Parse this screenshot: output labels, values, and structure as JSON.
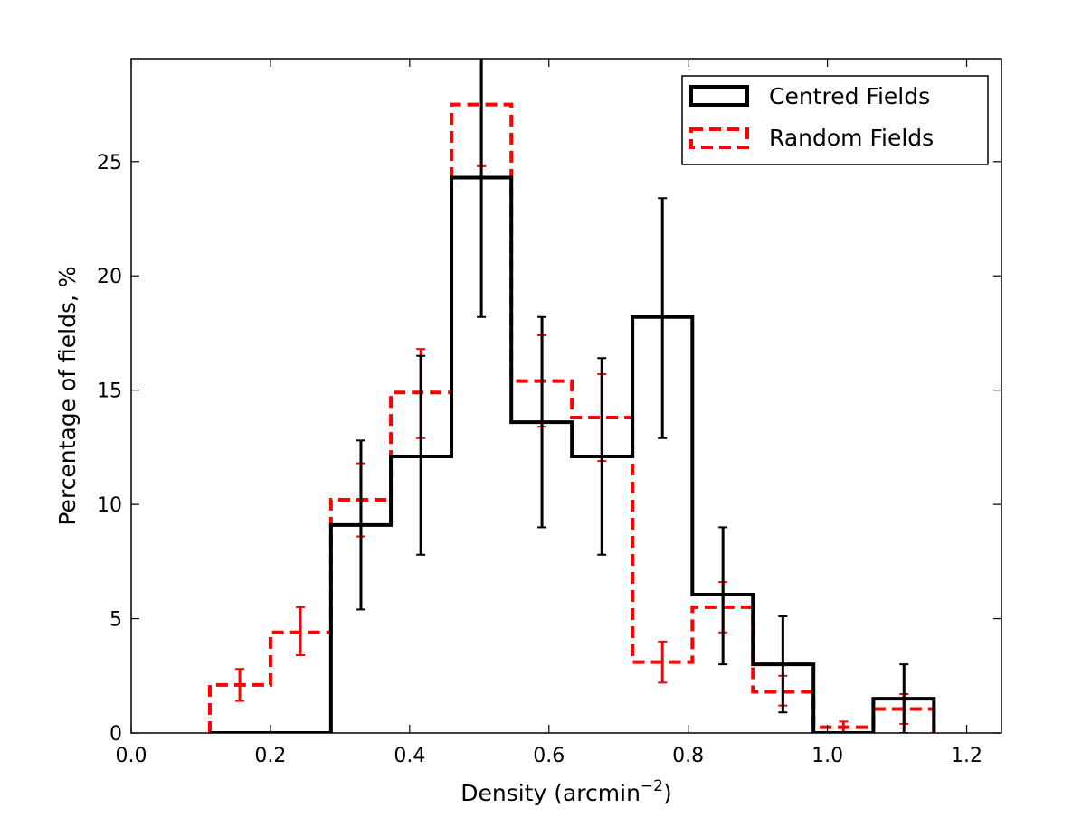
{
  "chart_data": {
    "type": "histogram",
    "title": "",
    "xlabel": "Density (arcmin",
    "xlabel_sup": "−2",
    "xlabel_close": ")",
    "ylabel": "Percentage of fields, %",
    "xlim": [
      0.0,
      1.25
    ],
    "ylim": [
      0,
      29.5
    ],
    "xticks": [
      0.0,
      0.2,
      0.4,
      0.6,
      0.8,
      1.0,
      1.2
    ],
    "xtick_labels": [
      "0.0",
      "0.2",
      "0.4",
      "0.6",
      "0.8",
      "1.0",
      "1.2"
    ],
    "yticks": [
      0,
      5,
      10,
      15,
      20,
      25
    ],
    "ytick_labels": [
      "0",
      "5",
      "10",
      "15",
      "20",
      "25"
    ],
    "legend_position": "top-right",
    "series": [
      {
        "name": "Centred Fields",
        "color": "#000000",
        "style": "solid",
        "bin_edges": [
          0.113,
          0.2,
          0.287,
          0.373,
          0.46,
          0.546,
          0.633,
          0.72,
          0.806,
          0.893,
          0.98,
          1.066,
          1.153
        ],
        "values": [
          0,
          0,
          9.1,
          12.1,
          24.3,
          13.6,
          12.1,
          18.2,
          6.05,
          3.0,
          0,
          1.5
        ],
        "errors": [
          null,
          null,
          {
            "x": 0.33,
            "low": 5.4,
            "high": 12.8
          },
          {
            "x": 0.416,
            "low": 7.8,
            "high": 16.5
          },
          {
            "x": 0.503,
            "low": 18.2,
            "high": 30.5
          },
          {
            "x": 0.59,
            "low": 9.0,
            "high": 18.2
          },
          {
            "x": 0.676,
            "low": 7.8,
            "high": 16.4
          },
          {
            "x": 0.763,
            "low": 12.9,
            "high": 23.4
          },
          {
            "x": 0.85,
            "low": 3.0,
            "high": 9.0
          },
          {
            "x": 0.936,
            "low": 0.9,
            "high": 5.1
          },
          null,
          {
            "x": 1.11,
            "low": 0.0,
            "high": 3.0
          }
        ]
      },
      {
        "name": "Random Fields",
        "color": "#ff0000",
        "style": "dashed",
        "bin_edges": [
          0.113,
          0.2,
          0.287,
          0.373,
          0.46,
          0.546,
          0.633,
          0.72,
          0.806,
          0.893,
          0.98,
          1.066,
          1.153
        ],
        "values": [
          2.1,
          4.4,
          10.2,
          14.9,
          27.5,
          15.4,
          13.8,
          3.1,
          5.5,
          1.8,
          0.25,
          1.05
        ],
        "errors": [
          {
            "x": 0.156,
            "low": 1.4,
            "high": 2.8
          },
          {
            "x": 0.243,
            "low": 3.4,
            "high": 5.5
          },
          {
            "x": 0.33,
            "low": 8.6,
            "high": 11.8
          },
          {
            "x": 0.416,
            "low": 12.9,
            "high": 16.8
          },
          {
            "x": 0.503,
            "low": 24.8,
            "high": 30.2
          },
          {
            "x": 0.59,
            "low": 13.4,
            "high": 17.4
          },
          {
            "x": 0.676,
            "low": 11.9,
            "high": 15.7
          },
          {
            "x": 0.763,
            "low": 2.2,
            "high": 4.0
          },
          {
            "x": 0.85,
            "low": 4.4,
            "high": 6.6
          },
          {
            "x": 0.936,
            "low": 1.2,
            "high": 2.5
          },
          {
            "x": 1.023,
            "low": 0.0,
            "high": 0.5
          },
          {
            "x": 1.11,
            "low": 0.4,
            "high": 1.7
          }
        ]
      }
    ]
  }
}
